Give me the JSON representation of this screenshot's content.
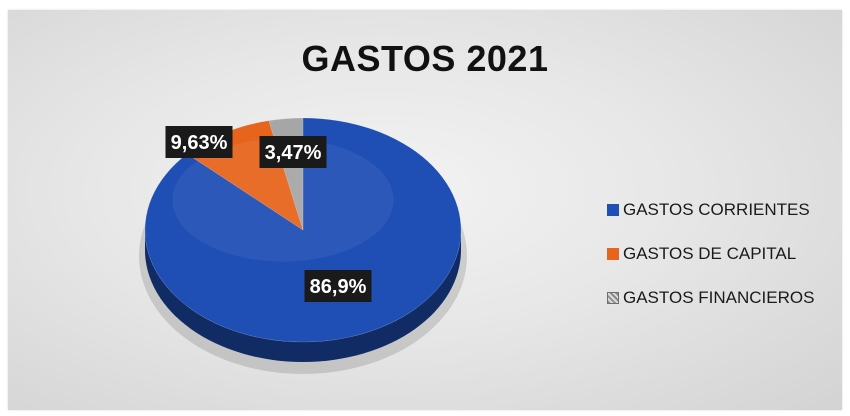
{
  "chart_data": {
    "type": "pie",
    "title": "GASTOS 2021",
    "categories": [
      "GASTOS CORRIENTES",
      "GASTOS DE CAPITAL",
      "GASTOS FINANCIEROS"
    ],
    "values": [
      86.9,
      9.63,
      3.47
    ],
    "data_labels": [
      "86,9%",
      "9,63%",
      "3,47%"
    ],
    "colors": [
      "#1f4fb5",
      "#e6641b",
      "#a6a6a6"
    ],
    "legend_position": "right"
  }
}
